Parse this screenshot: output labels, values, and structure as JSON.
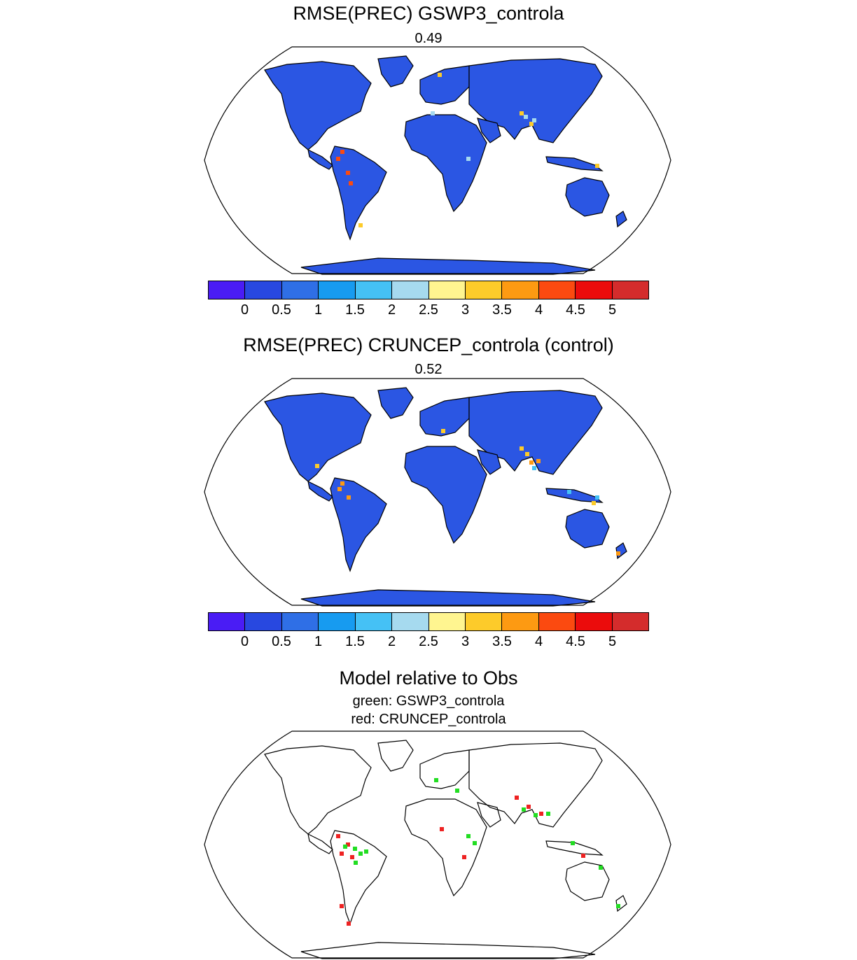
{
  "panel1": {
    "title": "RMSE(PREC) GSWP3_controla",
    "value": "0.49"
  },
  "panel2": {
    "title": "RMSE(PREC) CRUNCEP_controla (control)",
    "value": "0.52"
  },
  "panel3": {
    "title": "Model relative to Obs",
    "line1": "green: GSWP3_controla",
    "line2": "red: CRUNCEP_controla",
    "colors": {
      "green": "#22dd22",
      "red": "#ee2222"
    }
  },
  "colorbar": {
    "labels": [
      "0",
      "0.5",
      "1",
      "1.5",
      "2",
      "2.5",
      "3",
      "3.5",
      "4",
      "4.5",
      "5"
    ],
    "colors": [
      "#4a1cf5",
      "#2848e0",
      "#2f6fe6",
      "#179bf0",
      "#45c1f5",
      "#a6daef",
      "#fff590",
      "#fdcb2a",
      "#fd9a12",
      "#fb4a10",
      "#eb0c0c",
      "#d42c2c"
    ]
  },
  "map": {
    "land_color": "#2b56e3",
    "projection": "robinson",
    "coastline_color": "#000000",
    "ocean_color": "#ffffff"
  }
}
